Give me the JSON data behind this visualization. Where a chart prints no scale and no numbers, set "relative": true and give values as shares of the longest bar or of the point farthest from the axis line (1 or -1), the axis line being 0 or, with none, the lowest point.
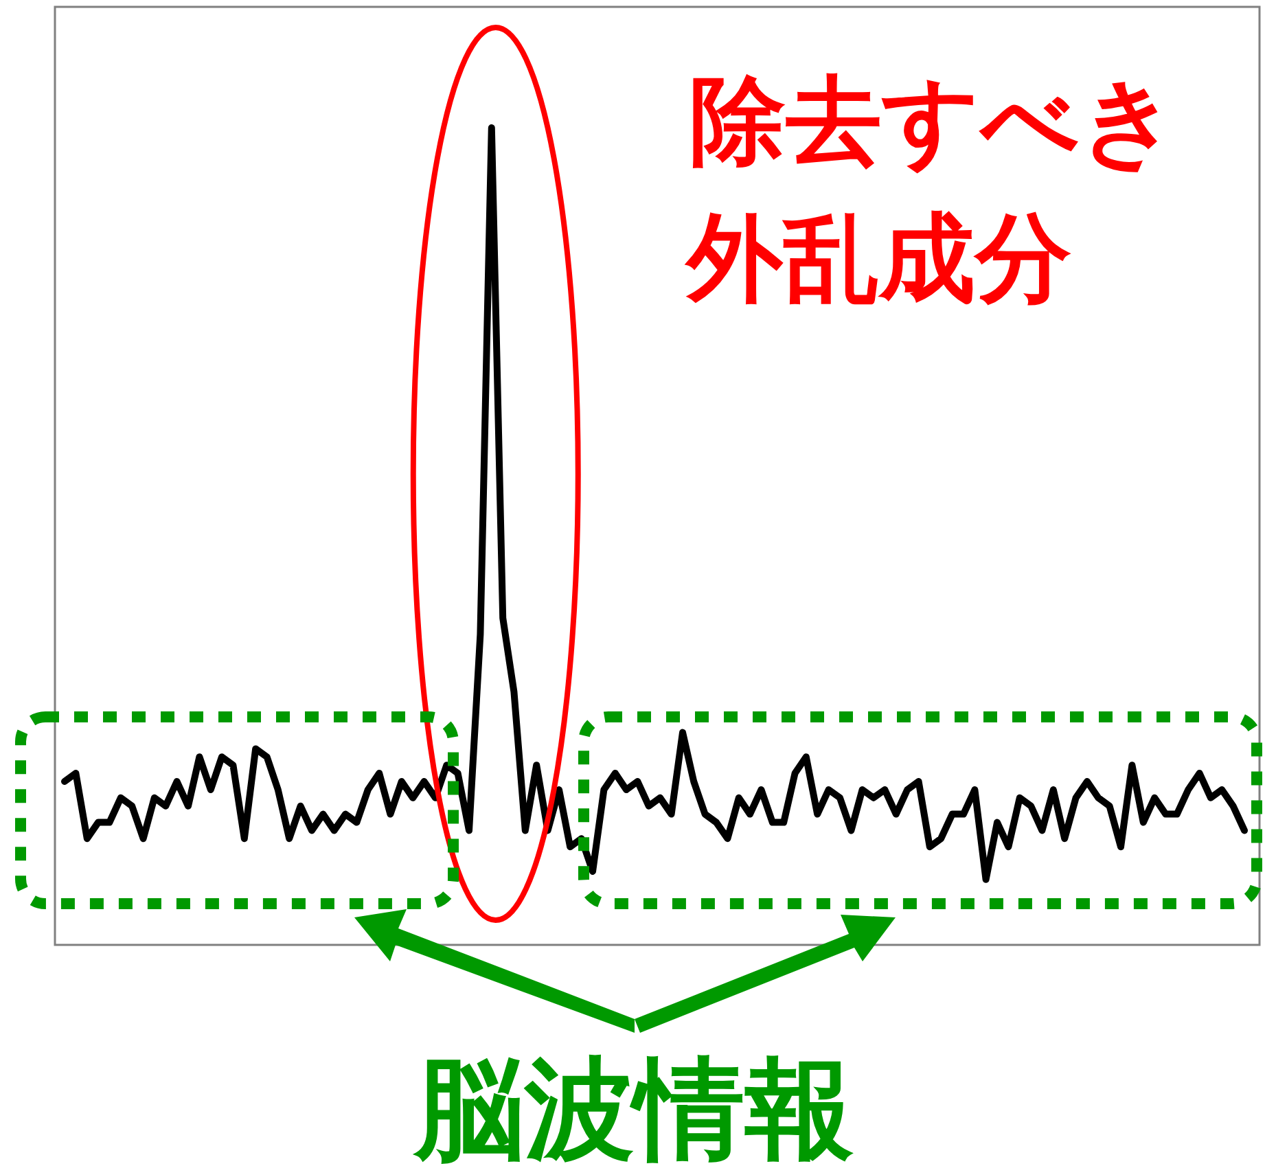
{
  "chart_data": {
    "type": "line",
    "relative": true,
    "color": "#000000",
    "categories": [
      null,
      null,
      null,
      null,
      null,
      null,
      null,
      null,
      null,
      null,
      null,
      null,
      null,
      null,
      null,
      null,
      null,
      null,
      null,
      null,
      null,
      null,
      null,
      null,
      null,
      null,
      null,
      null,
      null,
      null,
      null,
      null,
      null,
      null,
      null,
      null,
      null,
      null,
      null,
      null,
      null,
      null,
      null,
      null,
      null,
      null,
      null,
      null,
      null,
      null,
      null,
      null,
      null,
      null,
      null,
      null,
      null,
      null,
      null,
      null,
      null,
      null,
      null,
      null,
      null,
      null,
      null,
      null,
      null,
      null,
      null,
      null,
      null,
      null,
      null,
      null,
      null,
      null,
      null,
      null,
      null,
      null,
      null,
      null,
      null,
      null,
      null,
      null,
      null,
      null,
      null,
      null,
      null,
      null,
      null,
      null,
      null,
      null,
      null,
      null,
      null,
      null,
      null,
      null,
      null,
      null
    ],
    "values": [
      0.2,
      0.21,
      0.13,
      0.15,
      0.15,
      0.18,
      0.17,
      0.13,
      0.18,
      0.17,
      0.2,
      0.17,
      0.23,
      0.19,
      0.23,
      0.22,
      0.13,
      0.24,
      0.23,
      0.19,
      0.13,
      0.17,
      0.14,
      0.16,
      0.14,
      0.16,
      0.15,
      0.19,
      0.21,
      0.16,
      0.2,
      0.18,
      0.2,
      0.18,
      0.22,
      0.21,
      0.14,
      0.38,
      1.0,
      0.4,
      0.31,
      0.14,
      0.22,
      0.14,
      0.19,
      0.12,
      0.13,
      0.09,
      0.19,
      0.21,
      0.19,
      0.2,
      0.17,
      0.18,
      0.16,
      0.26,
      0.2,
      0.16,
      0.15,
      0.13,
      0.18,
      0.16,
      0.19,
      0.15,
      0.15,
      0.21,
      0.23,
      0.16,
      0.19,
      0.18,
      0.14,
      0.19,
      0.18,
      0.19,
      0.16,
      0.19,
      0.2,
      0.12,
      0.13,
      0.16,
      0.16,
      0.19,
      0.08,
      0.15,
      0.12,
      0.18,
      0.17,
      0.14,
      0.19,
      0.13,
      0.18,
      0.2,
      0.18,
      0.17,
      0.12,
      0.22,
      0.15,
      0.18,
      0.16,
      0.16,
      0.19,
      0.21,
      0.18,
      0.19,
      0.17,
      0.14
    ],
    "annotations": [
      "除去すべき",
      "外乱成分",
      "脳波情報"
    ]
  }
}
